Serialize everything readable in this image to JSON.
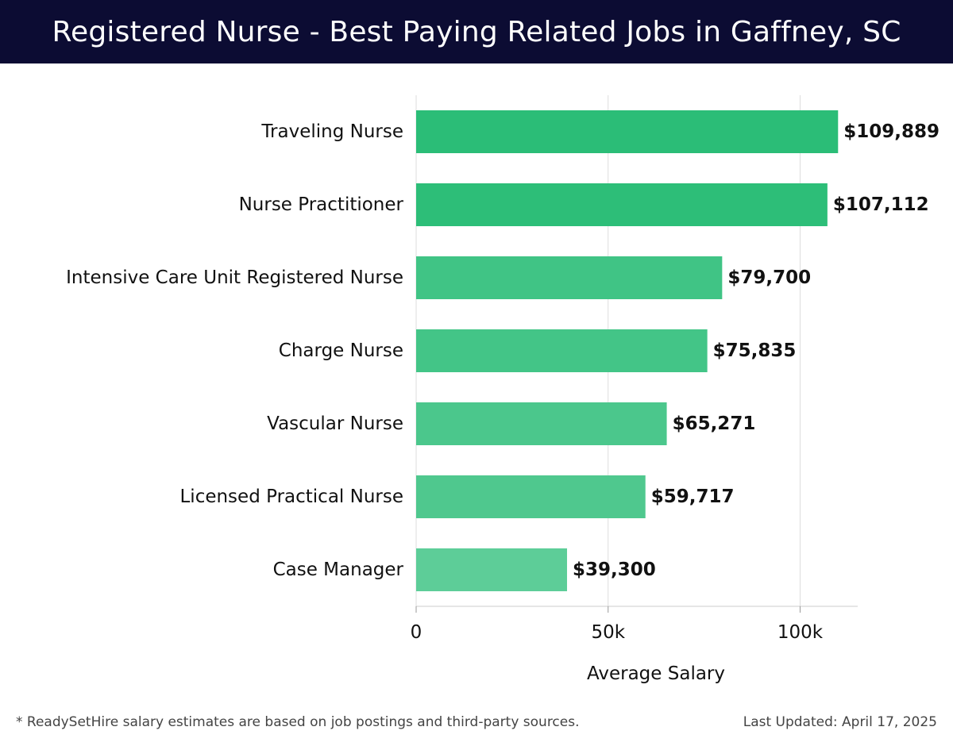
{
  "title": "Registered Nurse - Best Paying Related Jobs in Gaffney, SC",
  "footer": {
    "note": "* ReadySetHire salary estimates are based on job postings and third-party sources.",
    "updated": "Last Updated: April 17, 2025"
  },
  "colors": {
    "header_bg": "#0c0c33",
    "bar_dark": "#2bbd77",
    "bar_light": "#5dcd98",
    "grid": "#dddddd"
  },
  "chart_data": {
    "type": "bar",
    "orientation": "horizontal",
    "categories": [
      "Traveling Nurse",
      "Nurse Practitioner",
      "Intensive Care Unit Registered Nurse",
      "Charge Nurse",
      "Vascular Nurse",
      "Licensed Practical Nurse",
      "Case Manager"
    ],
    "values": [
      109889,
      107112,
      79700,
      75835,
      65271,
      59717,
      39300
    ],
    "value_labels": [
      "$109,889",
      "$107,112",
      "$79,700",
      "$75,835",
      "$65,271",
      "$59,717",
      "$39,300"
    ],
    "xlabel": "Average Salary",
    "ylabel": "",
    "xlim": [
      0,
      115000
    ],
    "xticks": [
      0,
      50000,
      100000
    ],
    "xtick_labels": [
      "0",
      "50k",
      "100k"
    ],
    "grid": true,
    "legend": "none"
  }
}
